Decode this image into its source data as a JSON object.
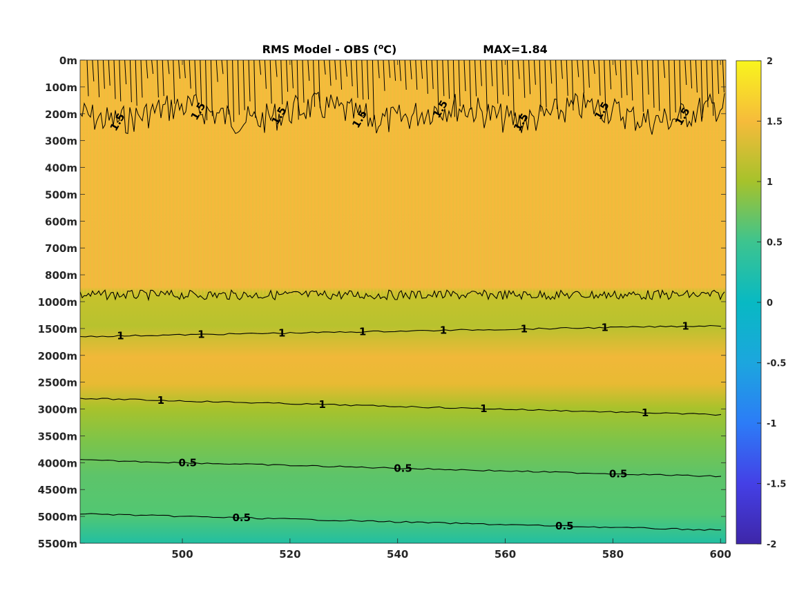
{
  "chart_data": {
    "type": "heatmap",
    "title": "RMS Model - OBS (°C)",
    "title_parts": {
      "prefix": "RMS Model - OBS (",
      "superscript": "o",
      "suffix": "C)"
    },
    "max_label": "MAX=1.84",
    "colormap": "parula",
    "x_ticks": [
      500,
      520,
      540,
      560,
      580,
      600
    ],
    "x_range": [
      481,
      601
    ],
    "y_ticks": [
      "0m",
      "100m",
      "200m",
      "300m",
      "400m",
      "500m",
      "600m",
      "700m",
      "800m",
      "1000m",
      "1500m",
      "2000m",
      "2500m",
      "3000m",
      "3500m",
      "4000m",
      "4500m",
      "5000m",
      "5500m"
    ],
    "depth_profile": {
      "depths_m": [
        0,
        100,
        200,
        300,
        400,
        500,
        600,
        700,
        800,
        1000,
        1500,
        2000,
        2500,
        3000,
        3500,
        4000,
        4500,
        5000,
        5500
      ],
      "rms": [
        1.4,
        1.45,
        1.45,
        1.4,
        1.38,
        1.38,
        1.38,
        1.37,
        1.35,
        1.18,
        1.1,
        1.25,
        1.12,
        0.98,
        0.82,
        0.7,
        0.58,
        0.52,
        0.3
      ]
    },
    "colorbar": {
      "min": -2,
      "max": 2,
      "ticks": [
        "2",
        "1.5",
        "1",
        "0.5",
        "0",
        "-0.5",
        "-1",
        "-1.5",
        "-2"
      ]
    },
    "contours": [
      {
        "level": "1.5",
        "depth_m": 200,
        "labels": [
          "1.5",
          "1.5",
          "1.5",
          "1.5",
          "1.5",
          "1.5",
          "1.5",
          "1.5"
        ]
      },
      {
        "level": "1",
        "depth_m": 950,
        "labels": []
      },
      {
        "level": "1",
        "depth_m": 1650,
        "labels": [
          "1",
          "1",
          "1",
          "1",
          "1",
          "1",
          "1",
          "1"
        ]
      },
      {
        "level": "1",
        "depth_m": 2800,
        "labels": [
          "1",
          "1",
          "1",
          "1"
        ]
      },
      {
        "level": "0.5",
        "depth_m": 3950,
        "labels": [
          "0.5",
          "0.5",
          "0.5"
        ]
      },
      {
        "level": "0.5",
        "depth_m": 4950,
        "labels": [
          "0.5",
          "0.5"
        ]
      }
    ]
  }
}
